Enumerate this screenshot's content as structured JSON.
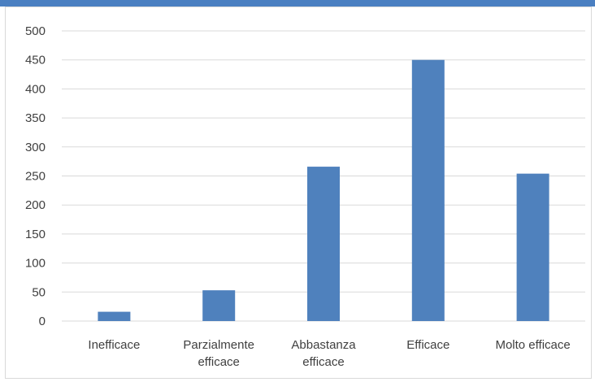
{
  "window": {
    "accent_color": "#4a7fc1",
    "border_color": "#d9d9d9"
  },
  "chart_data": {
    "type": "bar",
    "categories": [
      [
        "Inefficace"
      ],
      [
        "Parzialmente",
        "efficace"
      ],
      [
        "Abbastanza",
        "efficace"
      ],
      [
        "Efficace"
      ],
      [
        "Molto efficace"
      ]
    ],
    "values": [
      16,
      53,
      266,
      450,
      254
    ],
    "ylim": [
      0,
      500
    ],
    "yticks": [
      0,
      50,
      100,
      150,
      200,
      250,
      300,
      350,
      400,
      450,
      500
    ],
    "grid": true,
    "legend": "none",
    "bar_color": "#4f81bd",
    "grid_color": "#d9d9d9",
    "text_color": "#404040"
  }
}
